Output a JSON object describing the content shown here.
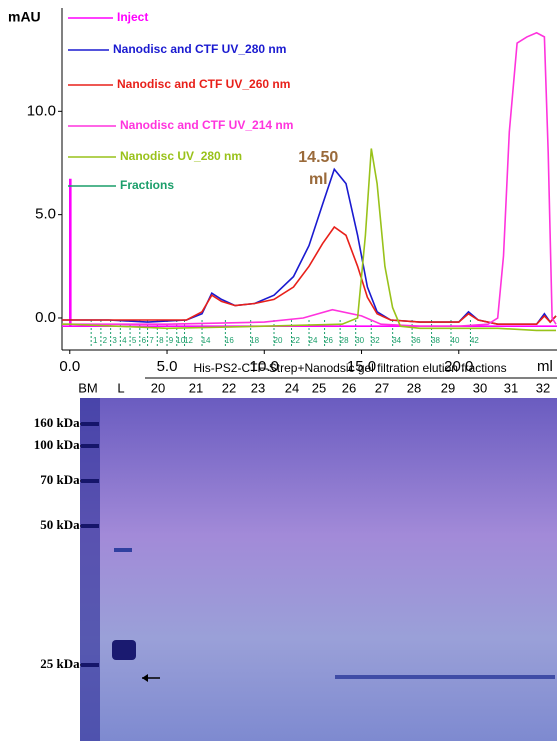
{
  "chart_data": {
    "type": "line",
    "y_label": "mAU",
    "x_label": "ml",
    "xlim": [
      -0.4,
      25.05
    ],
    "ylim": [
      -1.55,
      15.0
    ],
    "xticks": [
      {
        "value": 0,
        "label": "0.0"
      },
      {
        "value": 5,
        "label": "5.0"
      },
      {
        "value": 10,
        "label": "10.0"
      },
      {
        "value": 15,
        "label": "15.0"
      },
      {
        "value": 20,
        "label": "20.0"
      }
    ],
    "yticks": [
      {
        "value": 0,
        "label": "0.0"
      },
      {
        "value": 5,
        "label": "5.0"
      },
      {
        "value": 10,
        "label": "10.0"
      }
    ],
    "annotation": {
      "x": 13.6,
      "lines": [
        "14.50",
        "ml"
      ],
      "color": "#9a6a3a"
    },
    "series": [
      {
        "name": "Inject",
        "color": "#ff00ff",
        "x": [
          -0.4,
          0,
          0,
          0.05,
          0.05,
          25.05
        ],
        "values": [
          -0.4,
          -0.4,
          6.7,
          6.7,
          -0.4,
          -0.4
        ]
      },
      {
        "name": "Nanodisc and CTF UV_280 nm",
        "color": "#1a1ad0",
        "x": [
          -0.4,
          0,
          2,
          4,
          6,
          6.8,
          7.3,
          7.8,
          8.5,
          9.5,
          10.5,
          11.5,
          12.3,
          13,
          13.6,
          14.2,
          14.8,
          15.3,
          15.8,
          16.5,
          18,
          20,
          20.5,
          21,
          22,
          23,
          24,
          24.4,
          24.7,
          25
        ],
        "values": [
          -0.1,
          -0.1,
          -0.1,
          -0.2,
          -0.1,
          0.2,
          1.2,
          0.9,
          0.6,
          0.7,
          1.1,
          2,
          3.5,
          5.5,
          7.2,
          6.5,
          4,
          1.5,
          0.3,
          -0.1,
          -0.2,
          -0.2,
          0.3,
          -0.1,
          -0.3,
          -0.3,
          -0.3,
          0.2,
          -0.2,
          0.1
        ]
      },
      {
        "name": "Nanodisc and CTF UV_260 nm",
        "color": "#e8201a",
        "x": [
          -0.4,
          0,
          2,
          4,
          6,
          6.8,
          7.3,
          7.8,
          8.5,
          9.5,
          10.5,
          11.5,
          12.3,
          13,
          13.6,
          14.2,
          14.8,
          15.3,
          15.8,
          16.5,
          18,
          20,
          20.5,
          21,
          22,
          23,
          24,
          24.4,
          24.7,
          25
        ],
        "values": [
          -0.1,
          -0.1,
          -0.1,
          -0.1,
          -0.1,
          0.3,
          1.1,
          0.8,
          0.6,
          0.7,
          0.9,
          1.5,
          2.5,
          3.6,
          4.4,
          4,
          2.5,
          1,
          0.2,
          -0.1,
          -0.2,
          -0.2,
          0.2,
          -0.1,
          -0.3,
          -0.3,
          -0.3,
          0.1,
          -0.2,
          0.1
        ]
      },
      {
        "name": "Nanodisc and CTF UV_214 nm",
        "color": "#ff33dd",
        "x": [
          -0.4,
          0,
          5,
          10,
          12,
          13.5,
          15,
          16,
          18,
          20,
          21.5,
          22,
          22.3,
          22.6,
          23,
          23.5,
          24,
          24.4,
          24.6,
          24.8,
          25
        ],
        "values": [
          -0.3,
          -0.3,
          -0.3,
          -0.2,
          0,
          0.4,
          0.1,
          -0.3,
          -0.4,
          -0.4,
          -0.3,
          0,
          3,
          9,
          13.3,
          13.6,
          13.8,
          13.6,
          8,
          0,
          -0.3
        ]
      },
      {
        "name": "Nanodisc UV_280 nm",
        "color": "#99c21a",
        "x": [
          -0.4,
          0,
          5,
          10,
          14,
          14.8,
          15.2,
          15.5,
          15.8,
          16.2,
          16.6,
          17,
          18,
          20,
          22,
          24,
          25
        ],
        "values": [
          -0.3,
          -0.3,
          -0.5,
          -0.4,
          -0.3,
          0,
          4,
          8.2,
          6.5,
          2.5,
          0.5,
          -0.4,
          -0.5,
          -0.5,
          -0.5,
          -0.6,
          -0.6
        ]
      }
    ],
    "fractions": {
      "name": "Fractions",
      "color": "#1a9e6a",
      "labels": [
        "1",
        "2",
        "3",
        "4",
        "5",
        "6",
        "7",
        "8",
        "9",
        "10",
        "12",
        "14",
        "16",
        "18",
        "20",
        "22",
        "24",
        "26",
        "28",
        "30",
        "32",
        "34",
        "36",
        "38",
        "40",
        "42"
      ],
      "x": [
        1.1,
        1.6,
        2.1,
        2.6,
        3.1,
        3.6,
        4.0,
        4.5,
        5.0,
        5.5,
        5.9,
        6.8,
        8.0,
        9.3,
        10.5,
        11.4,
        12.3,
        13.1,
        13.9,
        14.7,
        15.5,
        16.6,
        17.6,
        18.6,
        19.6,
        20.6
      ]
    }
  },
  "gel": {
    "title": "His-PS2-CTF-Strep+Nanodsic gel filtration elution fractions",
    "lanes": [
      "BM",
      "L",
      "20",
      "21",
      "22",
      "23",
      "24",
      "25",
      "26",
      "27",
      "28",
      "29",
      "30",
      "31",
      "32"
    ],
    "markers": [
      "160 kDa-",
      "100 kDa-",
      "70 kDa-",
      "50 kDa-",
      "25 kDa-"
    ]
  }
}
